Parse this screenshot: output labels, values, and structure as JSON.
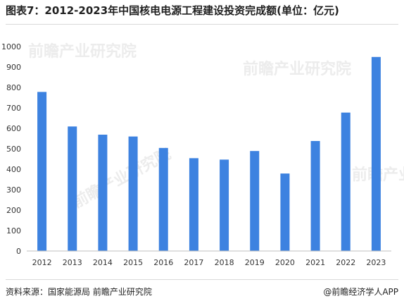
{
  "title": "图表7：2012-2023年中国核电电源工程建设投资完成额(单位：亿元)",
  "source": "资料来源：国家能源局 前瞻产业研究院",
  "credit": "@前瞻经济学人APP",
  "watermark": "前瞻产业研究院",
  "colors": {
    "bar": "#3d82e0",
    "axis": "#bfbfbf",
    "text": "#333333"
  },
  "chart_data": {
    "type": "bar",
    "categories": [
      "2012",
      "2013",
      "2014",
      "2015",
      "2016",
      "2017",
      "2018",
      "2019",
      "2020",
      "2021",
      "2022",
      "2023"
    ],
    "values": [
      778,
      609,
      569,
      560,
      504,
      454,
      447,
      489,
      379,
      538,
      677,
      949
    ],
    "title": "图表7：2012-2023年中国核电电源工程建设投资完成额(单位：亿元)",
    "xlabel": "",
    "ylabel": "",
    "ylim": [
      0,
      1000
    ],
    "yticks": [
      0,
      100,
      200,
      300,
      400,
      500,
      600,
      700,
      800,
      900,
      1000
    ],
    "grid": false,
    "legend": "none"
  }
}
